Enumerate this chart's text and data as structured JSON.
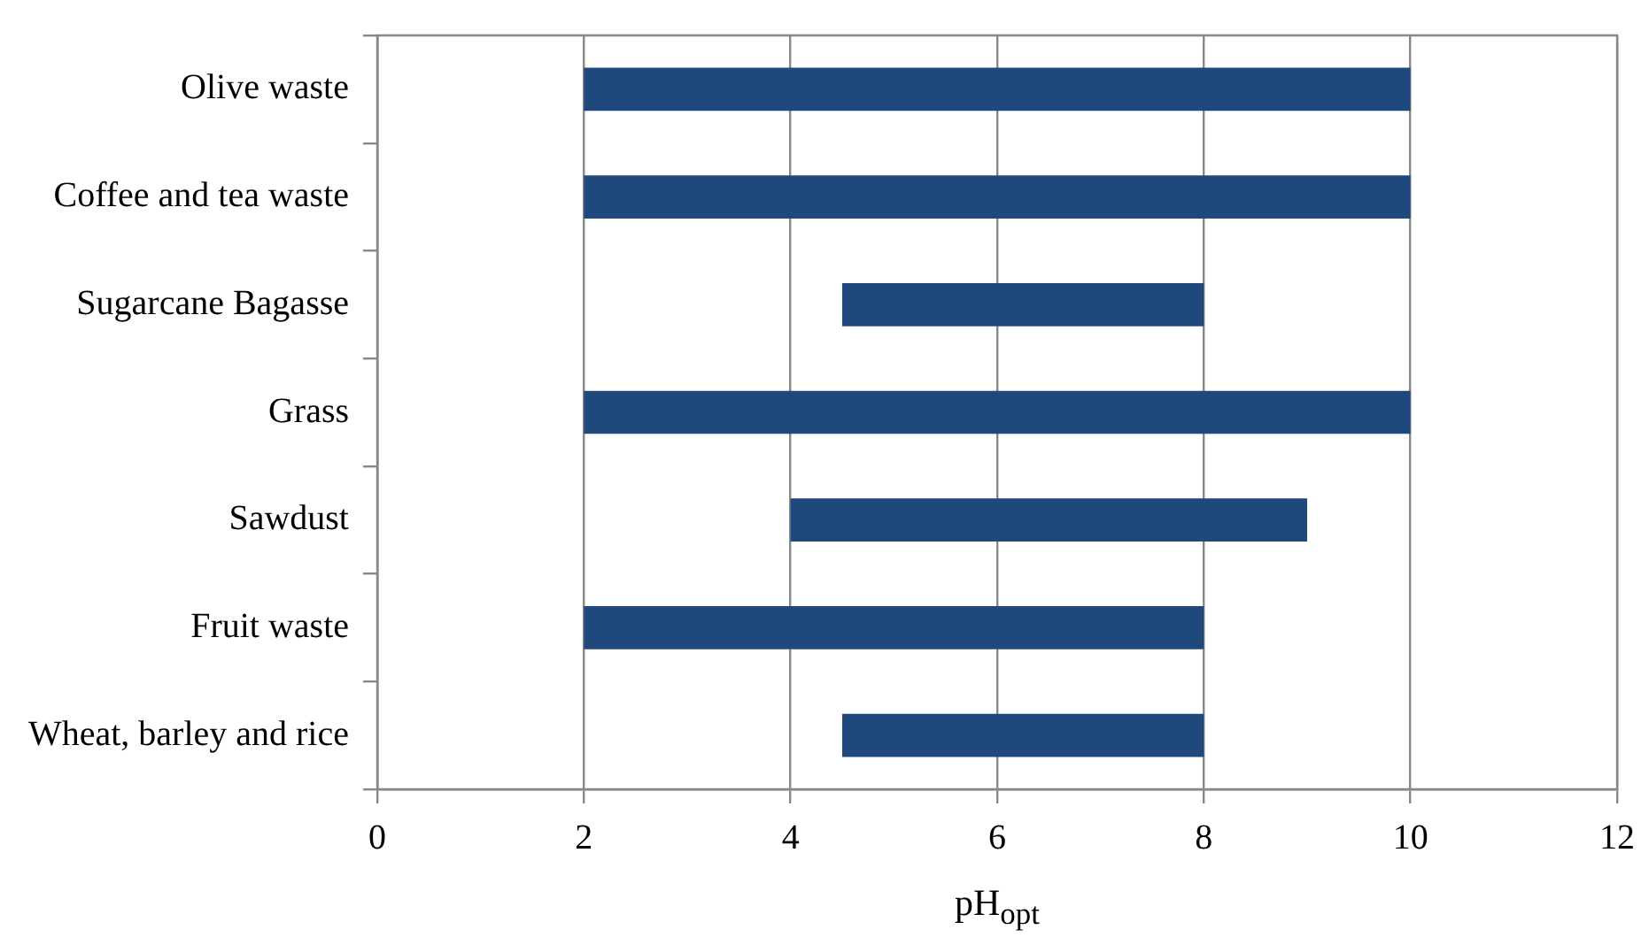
{
  "chart_data": {
    "type": "bar",
    "orientation": "horizontal",
    "xlabel": "pH$_{opt}$",
    "categories": [
      "Olive waste",
      "Coffee and tea waste",
      "Sugarcane Bagasse",
      "Grass",
      "Sawdust",
      "Fruit waste",
      "Wheat, barley and rice"
    ],
    "base": [
      2,
      2,
      4.5,
      2,
      4,
      2,
      4.5
    ],
    "values": [
      8,
      8,
      3.5,
      8,
      5,
      6,
      3.5
    ],
    "color": "#1f497d",
    "xlim": [
      0,
      12
    ],
    "xticks": [
      0,
      2,
      4,
      6,
      8,
      10,
      12
    ],
    "grid": "x",
    "legend": false
  }
}
